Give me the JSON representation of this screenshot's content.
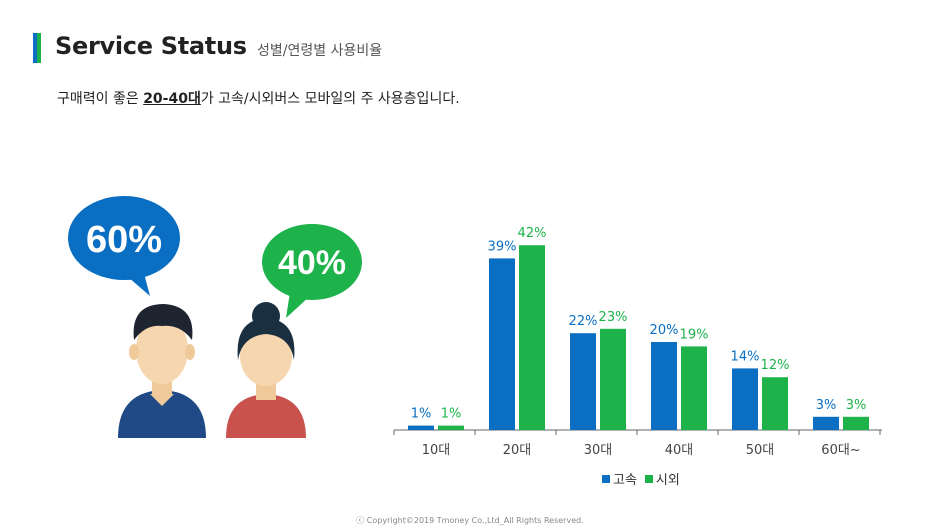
{
  "header": {
    "title": "Service Status",
    "subtitle": "성별/연령별 사용비율"
  },
  "lead": {
    "prefix": "구매력이 좋은 ",
    "highlight": "20-40대",
    "suffix": "가 고속/시외버스 모바일의 주 사용층입니다."
  },
  "gender": {
    "male_pct": "60%",
    "female_pct": "40%",
    "male_color": "#0a6fc2",
    "female_color": "#1db34a"
  },
  "chart_data": {
    "type": "bar",
    "categories": [
      "10대",
      "20대",
      "30대",
      "40대",
      "50대",
      "60대~"
    ],
    "series": [
      {
        "name": "고속",
        "color": "#0a6fc2",
        "values": [
          1,
          39,
          22,
          20,
          14,
          3
        ],
        "labels": [
          "1%",
          "39%",
          "22%",
          "20%",
          "14%",
          "3%"
        ]
      },
      {
        "name": "시외",
        "color": "#1db34a",
        "values": [
          1,
          42,
          23,
          19,
          12,
          3
        ],
        "labels": [
          "1%",
          "42%",
          "23%",
          "19%",
          "12%",
          "3%"
        ]
      }
    ],
    "ylim": [
      0,
      45
    ],
    "grid": false,
    "legend": "bottom-center"
  },
  "footer": "ⓒ Copyright©2019 Tmoney Co.,Ltd_All Rights Reserved."
}
